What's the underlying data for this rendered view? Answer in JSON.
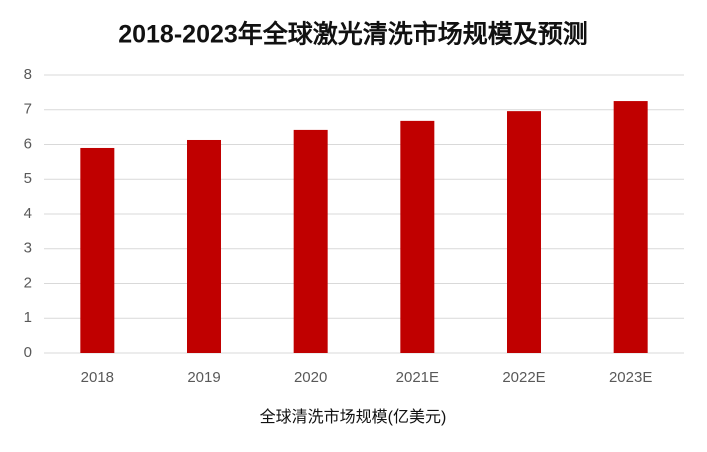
{
  "chart_data": {
    "type": "bar",
    "title": "2018-2023年全球激光清洗市场规模及预测",
    "x_label": "全球清洗市场规模(亿美元)",
    "categories": [
      "2018",
      "2019",
      "2020",
      "2021E",
      "2022E",
      "2023E"
    ],
    "values": [
      5.9,
      6.13,
      6.42,
      6.68,
      6.96,
      7.25
    ],
    "color": "#c00000",
    "ylim": [
      0,
      8
    ],
    "yticks": [
      0,
      1,
      2,
      3,
      4,
      5,
      6,
      7,
      8
    ],
    "grid": true
  }
}
